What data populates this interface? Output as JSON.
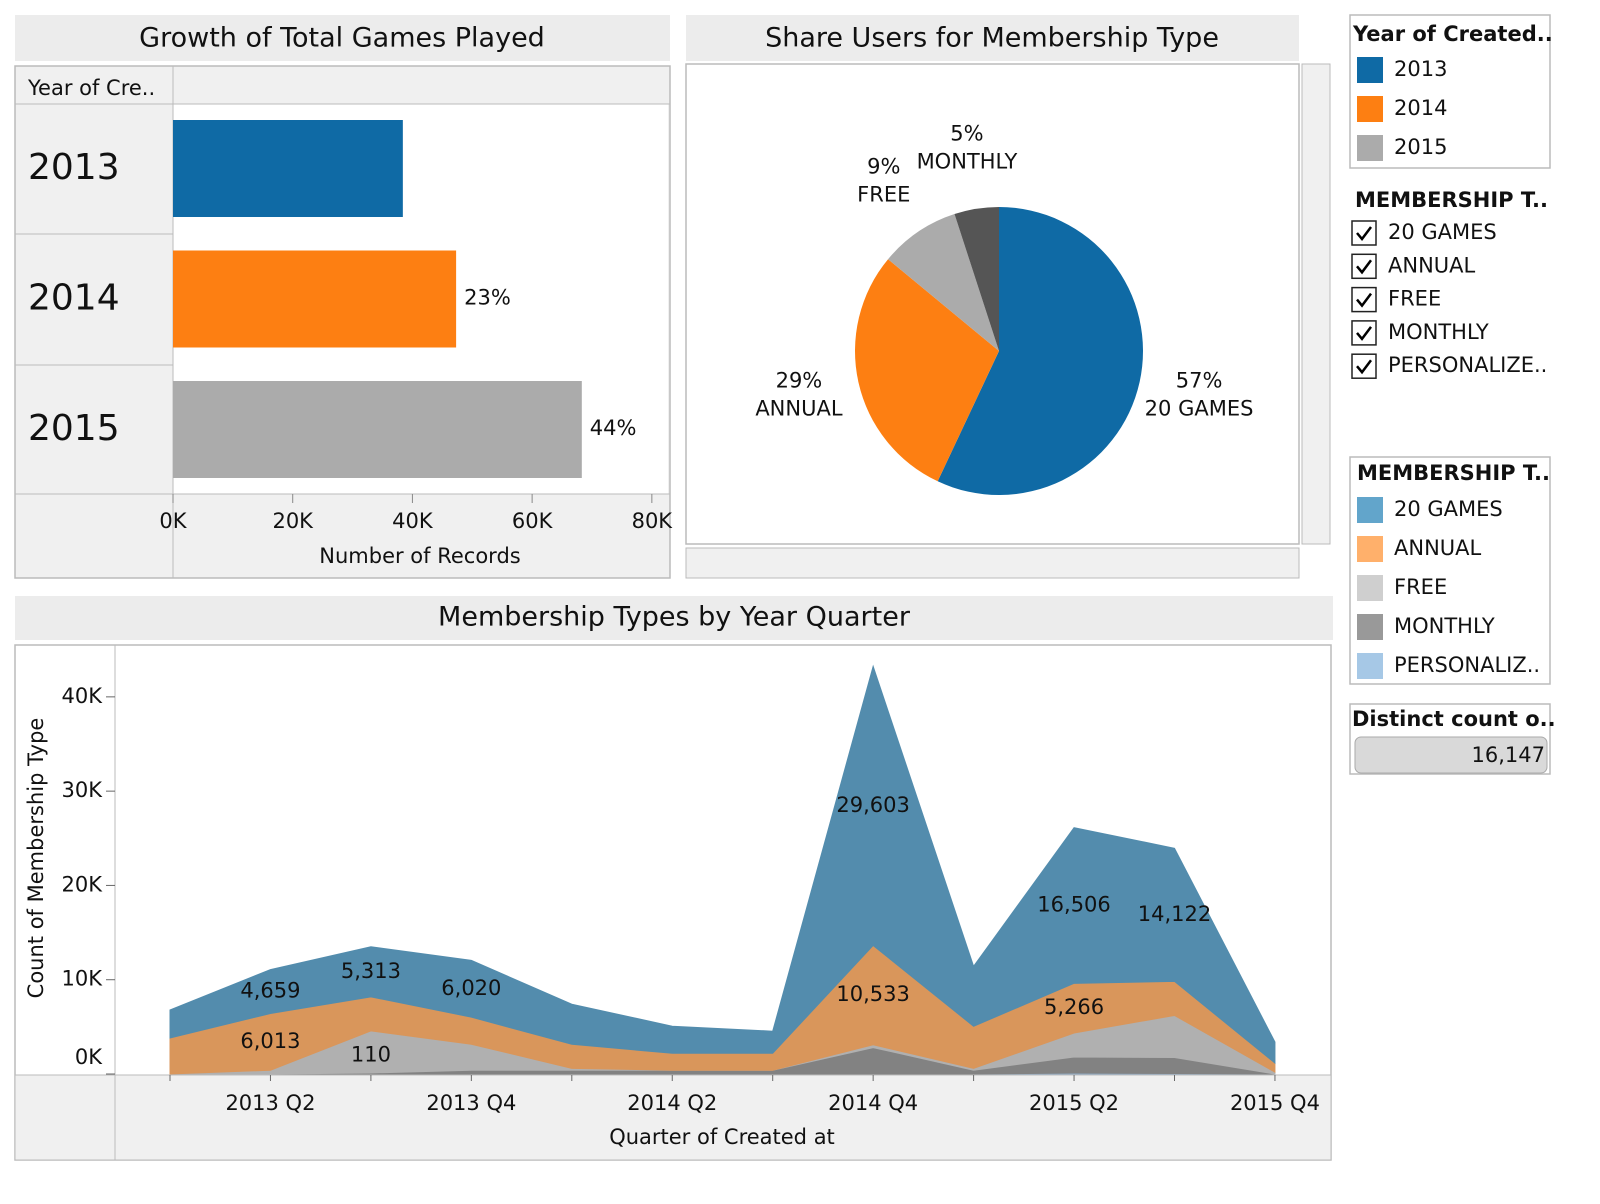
{
  "chart_data": [
    {
      "type": "hbar",
      "title": "Growth of Total Games Played",
      "row_header": "Year of Cre..",
      "categories": [
        "2013",
        "2014",
        "2015"
      ],
      "values": [
        38400,
        47300,
        68300
      ],
      "annotations": [
        null,
        "23%",
        "44%"
      ],
      "colors": [
        "#0f6aa5",
        "#fd7f12",
        "#ababab"
      ],
      "legend_title": "Year of Created..",
      "xlim": [
        0,
        82700
      ],
      "xticks": [
        {
          "value": 0,
          "label": "0K"
        },
        {
          "value": 20000,
          "label": "20K"
        },
        {
          "value": 40000,
          "label": "40K"
        },
        {
          "value": 60000,
          "label": "60K"
        },
        {
          "value": 80000,
          "label": "80K"
        }
      ],
      "xlabel": "Number of Records"
    },
    {
      "type": "pie",
      "title": "Share Users for Membership Type",
      "categories": [
        "20 GAMES",
        "ANNUAL",
        "FREE",
        "MONTHLY"
      ],
      "values": [
        57,
        29,
        9,
        5
      ],
      "value_labels": [
        "57%",
        "29%",
        "9%",
        "5%"
      ],
      "colors": [
        "#0f6aa5",
        "#fd7f12",
        "#ababab",
        "#555555"
      ]
    },
    {
      "type": "stacked-area",
      "title": "Membership Types by Year Quarter",
      "categories": [
        null,
        "2013 Q2",
        null,
        "2013 Q4",
        null,
        "2014 Q2",
        null,
        "2014 Q4",
        null,
        "2015 Q2",
        null,
        "2015 Q4"
      ],
      "legend_title": "MEMBERSHIP T..",
      "series": [
        {
          "name": "20 GAMES",
          "color": "#62a5cb",
          "values": [
            2970,
            4659,
            5313,
            6020,
            4250,
            2870,
            2340,
            29603,
            6370,
            16506,
            14122,
            2230
          ],
          "value_labels": [
            null,
            "4,659",
            "5,313",
            "6,020",
            null,
            null,
            null,
            "29,603",
            null,
            "16,506",
            "14,122",
            null
          ]
        },
        {
          "name": "ANNUAL",
          "color": "#ffb06b",
          "values": [
            3820,
            6013,
            3610,
            2870,
            2550,
            1800,
            1800,
            10533,
            4460,
            5266,
            3610,
            960
          ],
          "value_labels": [
            null,
            "6,013",
            null,
            null,
            null,
            null,
            null,
            "10,533",
            null,
            "5,266",
            null,
            null
          ]
        },
        {
          "name": "FREE",
          "color": "#cfcfcf",
          "values": [
            0,
            400,
            4460,
            2760,
            200,
            0,
            0,
            300,
            200,
            2550,
            4460,
            200
          ]
        },
        {
          "name": "MONTHLY",
          "color": "#999999",
          "values": [
            0,
            0,
            110,
            400,
            400,
            400,
            400,
            2800,
            400,
            1700,
            1700,
            0
          ],
          "value_labels": [
            null,
            null,
            "110",
            null,
            null,
            null,
            null,
            null,
            null,
            null,
            null,
            null
          ]
        },
        {
          "name": "PERSONALIZ..",
          "color": "#a6c8e6",
          "values": [
            0,
            0,
            0,
            0,
            0,
            0,
            0,
            0,
            0,
            100,
            50,
            0
          ]
        }
      ],
      "ylim": [
        0,
        45500
      ],
      "yticks": [
        {
          "value": 0,
          "label": "0K"
        },
        {
          "value": 10000,
          "label": "10K"
        },
        {
          "value": 20000,
          "label": "20K"
        },
        {
          "value": 30000,
          "label": "30K"
        },
        {
          "value": 40000,
          "label": "40K"
        }
      ],
      "xlabel": "Quarter of Created at",
      "ylabel": "Count of Membership Type"
    }
  ],
  "filter": {
    "title": "MEMBERSHIP T..",
    "items": [
      "20 GAMES",
      "ANNUAL",
      "FREE",
      "MONTHLY",
      "PERSONALIZE.."
    ]
  },
  "summary": {
    "title": "Distinct count o..",
    "value": "16,147"
  }
}
